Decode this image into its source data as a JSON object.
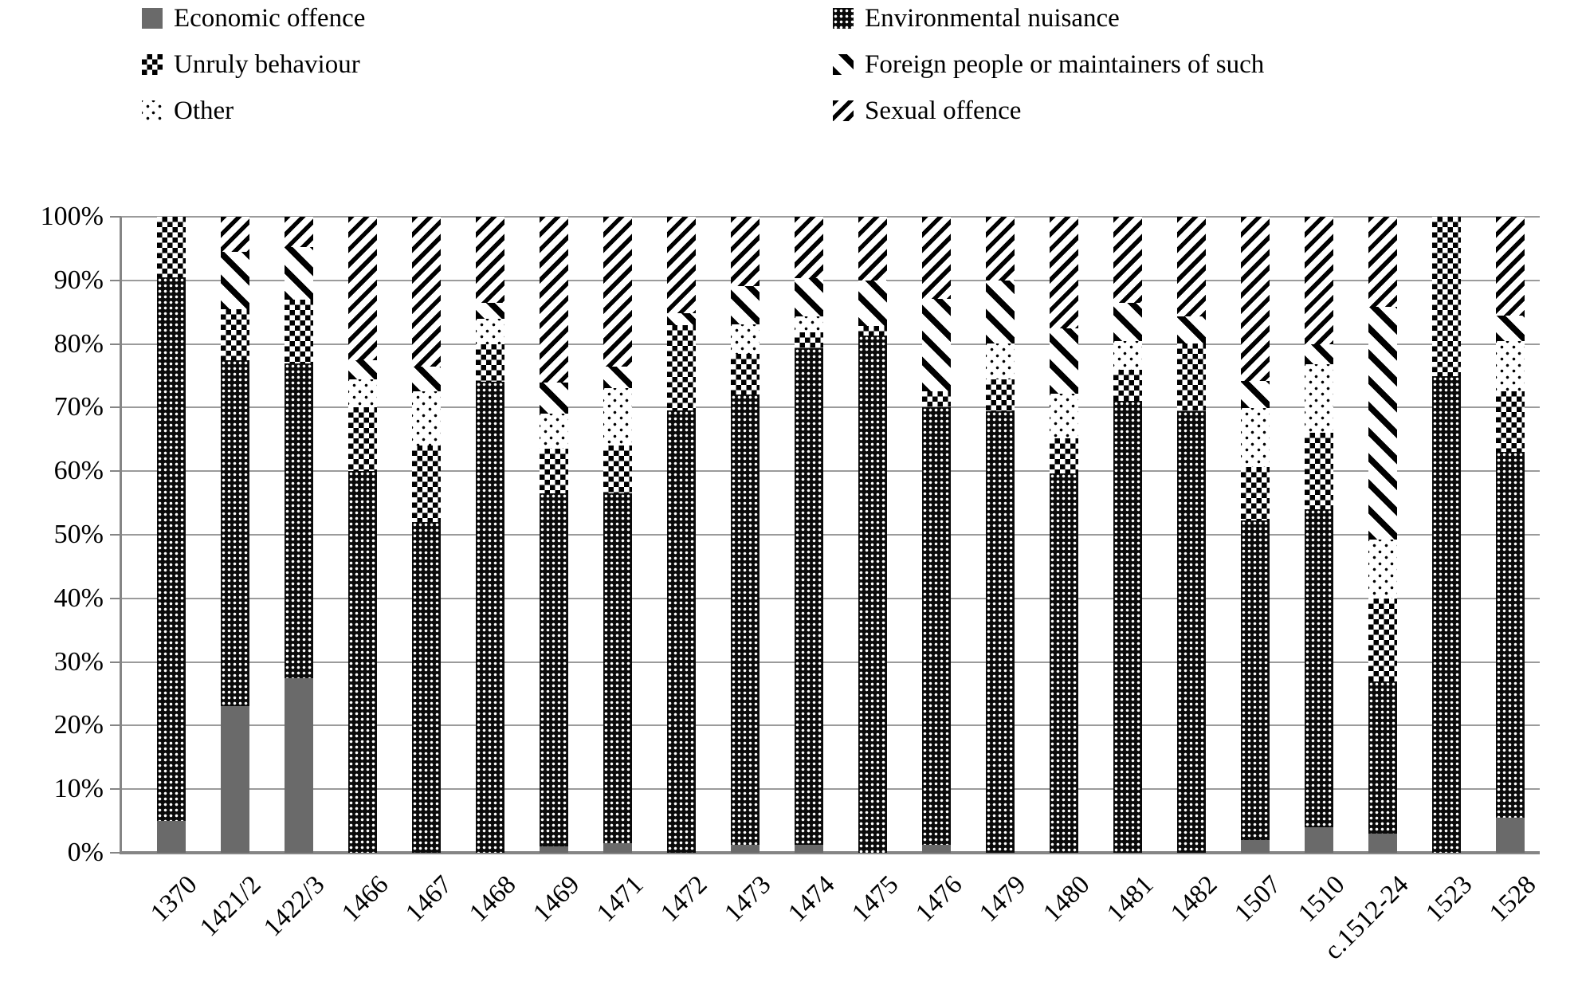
{
  "legend": {
    "columns": [
      {
        "items": [
          {
            "key": "economic",
            "label": "Economic offence"
          },
          {
            "key": "unruly",
            "label": "Unruly behaviour"
          },
          {
            "key": "other",
            "label": "Other"
          }
        ]
      },
      {
        "items": [
          {
            "key": "environmental",
            "label": "Environmental nuisance"
          },
          {
            "key": "foreign",
            "label": "Foreign people or maintainers of such"
          },
          {
            "key": "sexual",
            "label": "Sexual offence"
          }
        ]
      }
    ]
  },
  "chart_data": {
    "type": "bar",
    "stacked": true,
    "units": "percent",
    "title": "",
    "xlabel": "",
    "ylabel": "",
    "grid": true,
    "legend_position": "top",
    "categories": [
      "1370",
      "1421/2",
      "1422/3",
      "1466",
      "1467",
      "1468",
      "1469",
      "1471",
      "1472",
      "1473",
      "1474",
      "1475",
      "1476",
      "1479",
      "1480",
      "1481",
      "1482",
      "1507",
      "1510",
      "c.1512-24",
      "1523",
      "1528"
    ],
    "series": [
      {
        "key": "economic",
        "name": "Economic offence",
        "values": [
          5,
          23,
          27.5,
          0,
          0,
          0,
          1,
          1.5,
          0,
          1.2,
          1.2,
          0,
          1.2,
          0,
          0,
          0,
          0,
          2,
          4,
          3,
          0,
          5.5
        ]
      },
      {
        "key": "environmental",
        "name": "Environmental nuisance",
        "values": [
          85.5,
          54.5,
          49.5,
          60,
          52,
          74,
          55.5,
          55,
          69.5,
          70.8,
          78.1,
          81.3,
          68.8,
          69.4,
          59.6,
          71,
          69.4,
          50.3,
          50,
          24,
          75,
          57.5
        ]
      },
      {
        "key": "unruly",
        "name": "Unruly behaviour",
        "values": [
          9.5,
          8,
          10,
          10,
          12,
          6,
          7,
          7.5,
          13.5,
          6.5,
          2.5,
          1.5,
          2.5,
          5.1,
          5.6,
          5,
          10.7,
          8.3,
          12,
          13,
          25,
          9.5
        ]
      },
      {
        "key": "other",
        "name": "Other",
        "values": [
          0,
          0,
          0,
          4.5,
          8.5,
          4,
          5.5,
          9,
          0,
          4.6,
          2.6,
          0,
          0,
          5.6,
          7,
          4.5,
          0,
          9.3,
          10.8,
          9.2,
          0,
          8
        ]
      },
      {
        "key": "foreign",
        "name": "Foreign people or maintainers of such",
        "values": [
          0,
          9,
          8.3,
          3,
          4,
          2.5,
          5,
          3.5,
          1.8,
          6,
          6,
          7.2,
          14.6,
          9.9,
          10.3,
          6,
          4.3,
          4.3,
          3.1,
          36.6,
          0,
          4
        ]
      },
      {
        "key": "sexual",
        "name": "Sexual offence",
        "values": [
          0,
          5.5,
          4.7,
          22.5,
          23.5,
          13.5,
          26,
          23.5,
          15.2,
          10.9,
          9.6,
          10,
          12.9,
          10,
          17.5,
          13.5,
          15.6,
          25.8,
          20.1,
          14.2,
          0,
          15.5
        ]
      }
    ],
    "y_axis": {
      "min": 0,
      "max": 100,
      "step": 10,
      "tick_labels": [
        "0%",
        "10%",
        "20%",
        "30%",
        "40%",
        "50%",
        "60%",
        "70%",
        "80%",
        "90%",
        "100%"
      ]
    }
  },
  "colors": {
    "economic_fill": "#6a6a6a",
    "pattern_ink": "#000000",
    "gridline": "#9b9b9b",
    "axis": "#858585",
    "background": "#ffffff"
  }
}
